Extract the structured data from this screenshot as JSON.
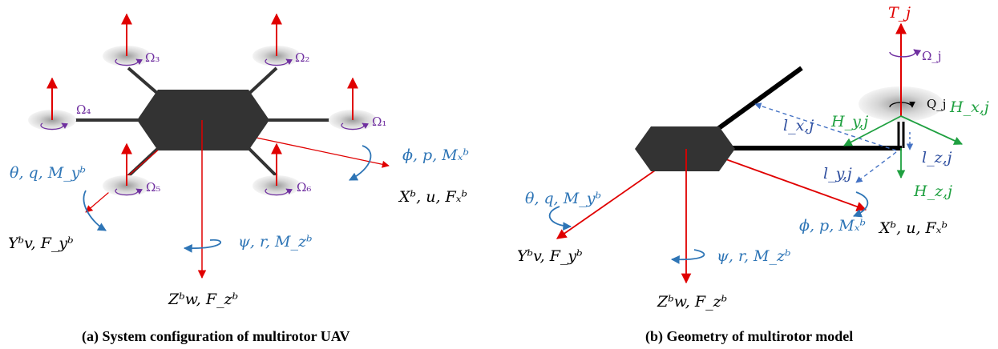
{
  "panel_a": {
    "caption": "(a) System configuration of multirotor UAV",
    "rotor_labels": [
      "Ω₁",
      "Ω₂",
      "Ω₃",
      "Ω₄",
      "Ω₅",
      "Ω₆"
    ],
    "roll_label": "ϕ, p, Mₓᵇ",
    "x_axis_label": "Xᵇ, u, Fₓᵇ",
    "pitch_label": "θ, q, M_yᵇ",
    "y_axis_label": "Yᵇv, F_yᵇ",
    "yaw_label": "ψ, r, M_zᵇ",
    "z_axis_label": "Zᵇw, F_zᵇ"
  },
  "panel_b": {
    "caption": "(b) Geometry of multirotor model",
    "thrust_label": "T_j",
    "rotor_speed_label": "Ω_j",
    "torque_label": "Q_j",
    "hx_label": "H_x,j",
    "hy_label": "H_y,j",
    "hz_label": "H_z,j",
    "lx_label": "l_x,j",
    "ly_label": "l_y,j",
    "lz_label": "l_z,j",
    "pitch_label": "θ, q, M_yᵇ",
    "y_axis_label": "Yᵇv, F_yᵇ",
    "yaw_label": "ψ, r, M_zᵇ",
    "z_axis_label": "Zᵇw, F_zᵇ",
    "roll_label": "ϕ, p, Mₓᵇ",
    "x_axis_label": "Xᵇ, u, Fₓᵇ"
  },
  "colors": {
    "body": "#333333",
    "force_arrow": "#e00000",
    "moment_label": "#2e75b6",
    "rotor_label": "#7030a0",
    "hub_force": "#1fa040",
    "distance": "#4472c4"
  }
}
